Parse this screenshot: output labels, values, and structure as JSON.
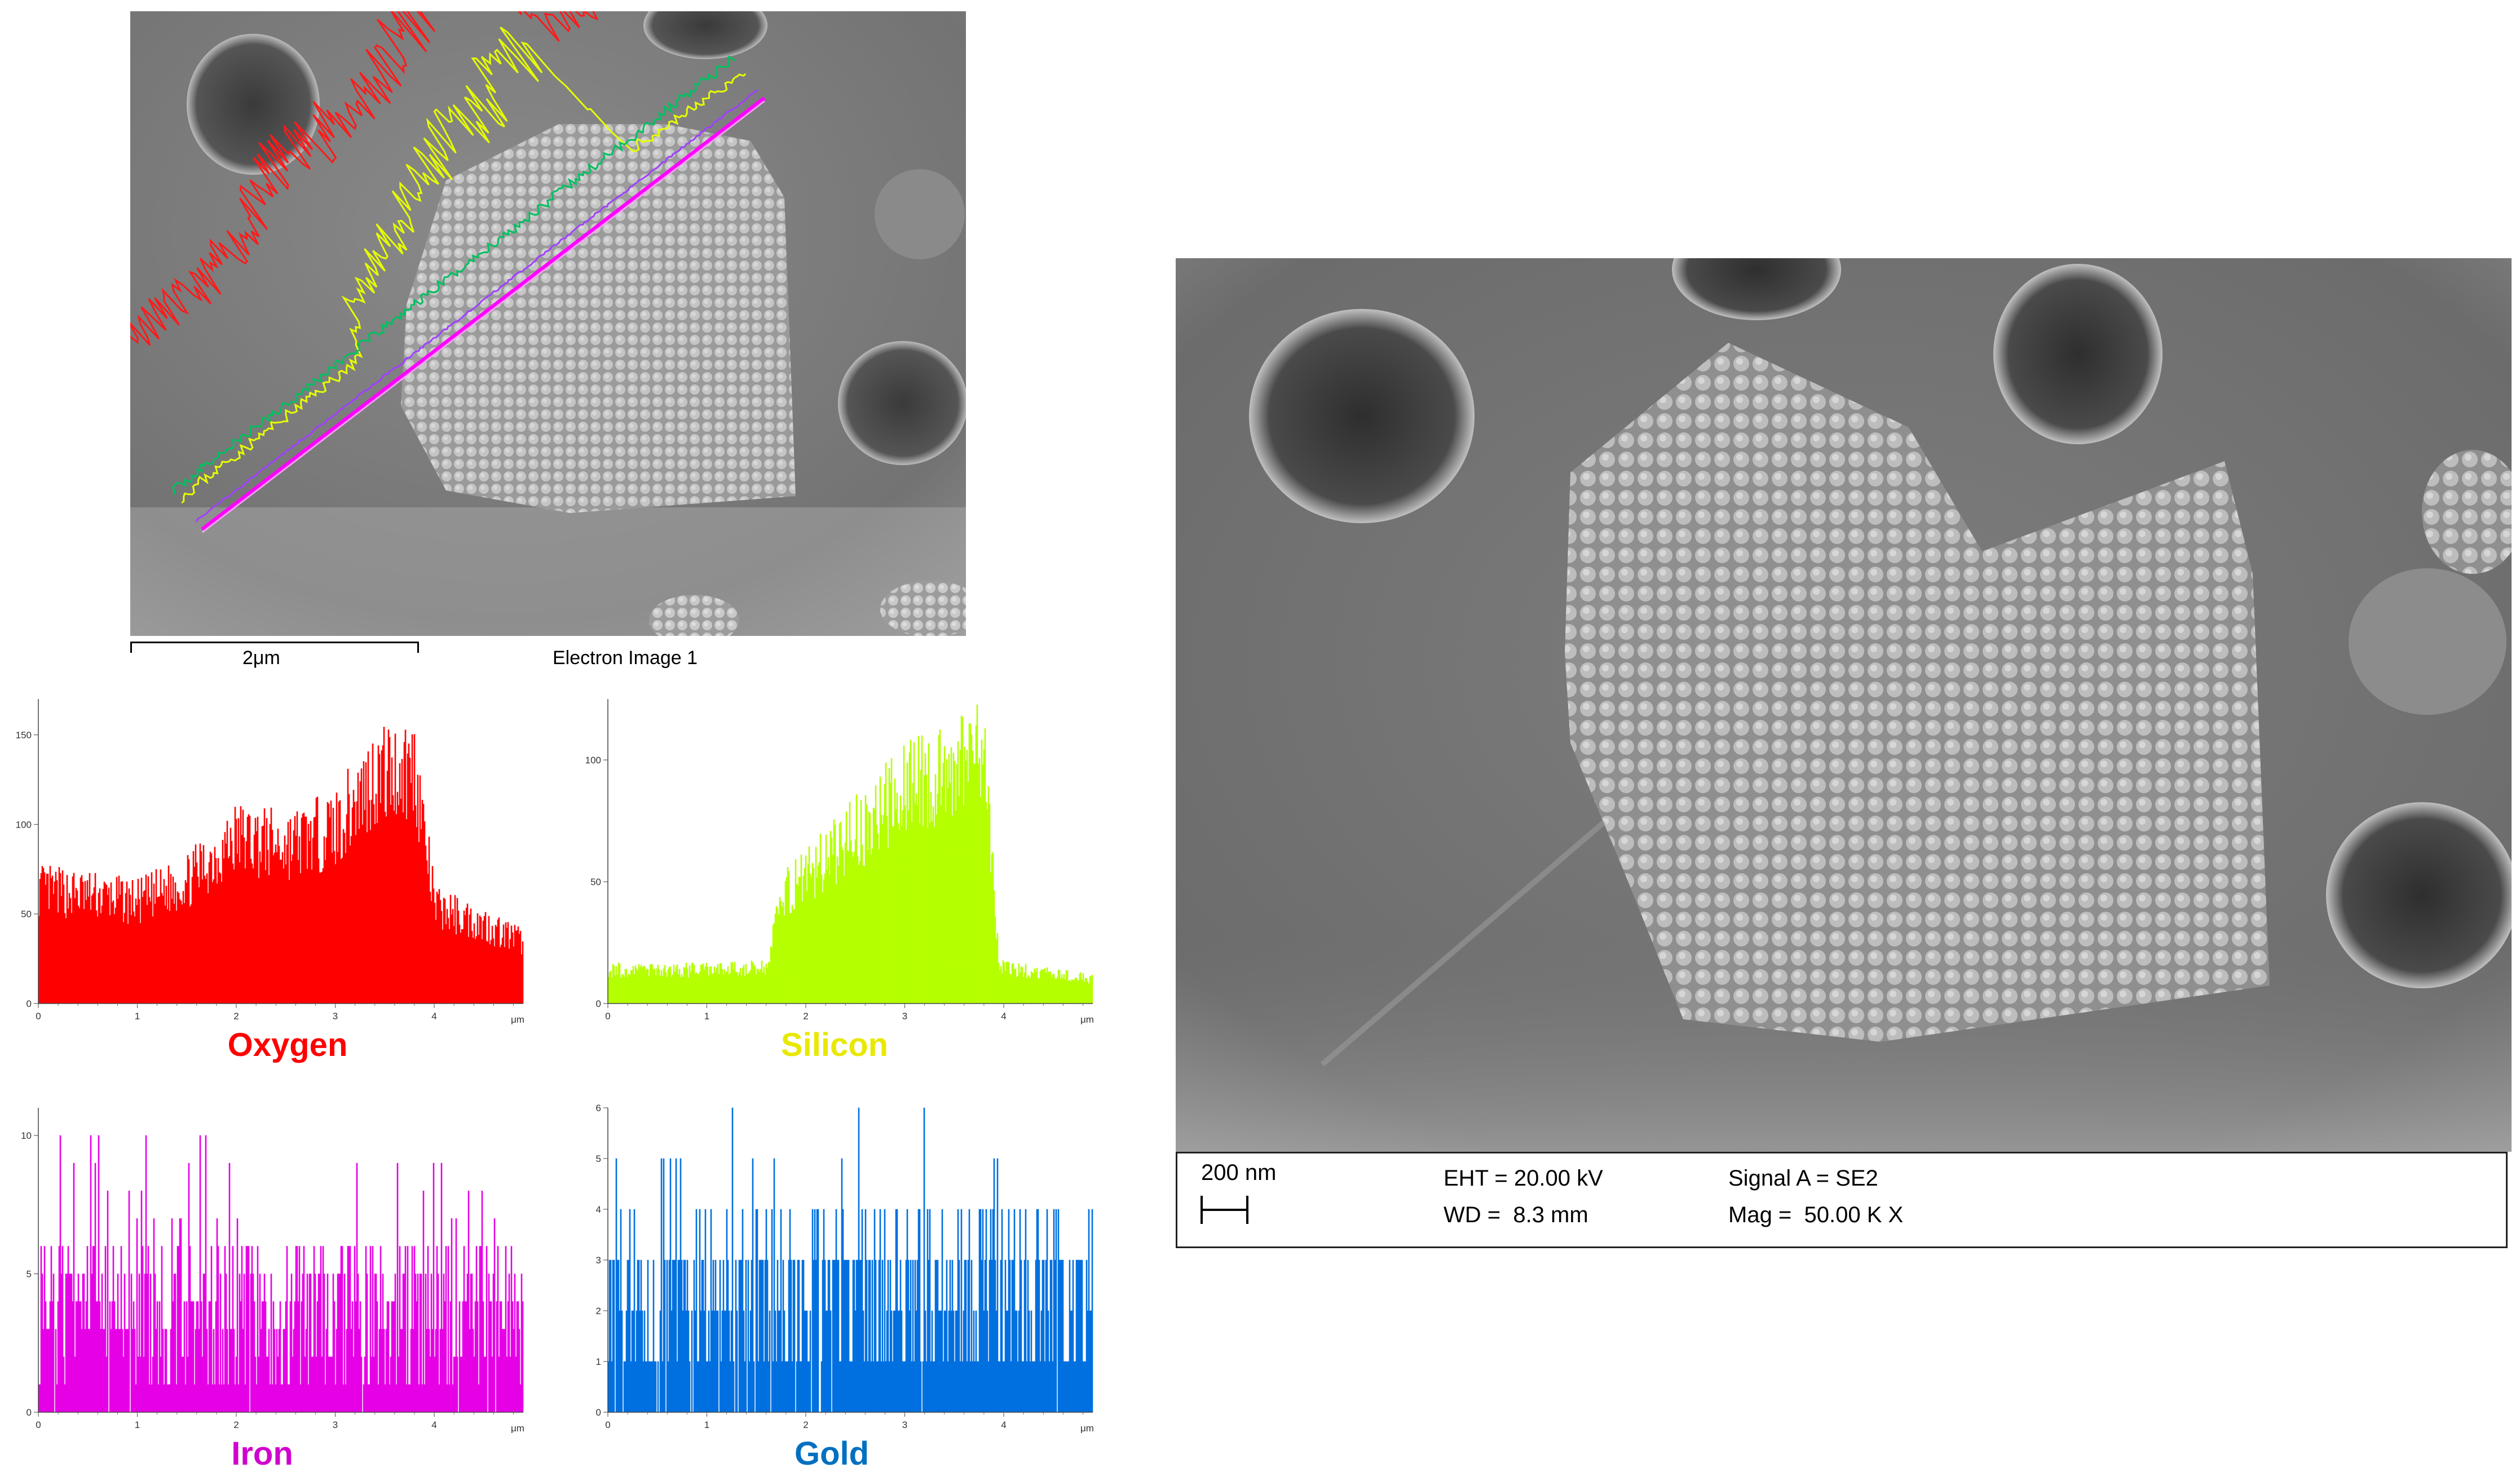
{
  "left_image": {
    "scale_label": "2μm",
    "caption": "Electron Image 1"
  },
  "chart_data": [
    {
      "type": "bar",
      "title": "Oxygen",
      "color": "#ff0000",
      "xlabel": "μm",
      "xlim": [
        0,
        4.9
      ],
      "ylim": [
        0,
        170
      ],
      "xticks": [
        "0",
        "1",
        "2",
        "3",
        "4"
      ],
      "yticks": [
        "0",
        "50",
        "100",
        "150"
      ],
      "profile": [
        [
          0,
          65
        ],
        [
          0.5,
          62
        ],
        [
          1,
          58
        ],
        [
          1.5,
          70
        ],
        [
          2,
          95
        ],
        [
          2.5,
          90
        ],
        [
          3,
          100
        ],
        [
          3.4,
          130
        ],
        [
          3.8,
          135
        ],
        [
          4,
          55
        ],
        [
          4.5,
          45
        ],
        [
          4.9,
          35
        ]
      ]
    },
    {
      "type": "bar",
      "title": "Silicon",
      "color": "#b5ff00",
      "xlabel": "μm",
      "xlim": [
        0,
        4.9
      ],
      "ylim": [
        0,
        125
      ],
      "xticks": [
        "0",
        "1",
        "2",
        "3",
        "4"
      ],
      "yticks": [
        "0",
        "50",
        "100"
      ],
      "profile": [
        [
          0,
          14
        ],
        [
          1,
          14
        ],
        [
          1.6,
          15
        ],
        [
          1.75,
          45
        ],
        [
          2.2,
          60
        ],
        [
          2.6,
          75
        ],
        [
          3,
          90
        ],
        [
          3.5,
          100
        ],
        [
          3.8,
          105
        ],
        [
          3.95,
          15
        ],
        [
          4.5,
          12
        ],
        [
          4.9,
          10
        ]
      ]
    },
    {
      "type": "bar",
      "title": "Iron",
      "color": "#e600e6",
      "xlabel": "μm",
      "xlim": [
        0,
        4.9
      ],
      "ylim": [
        0,
        11
      ],
      "xticks": [
        "0",
        "1",
        "2",
        "3",
        "4"
      ],
      "yticks": [
        "0",
        "5",
        "10"
      ],
      "profile": [
        [
          0,
          3
        ],
        [
          4.9,
          3
        ]
      ]
    },
    {
      "type": "bar",
      "title": "Gold",
      "color": "#0070e0",
      "xlabel": "μm",
      "xlim": [
        0,
        4.9
      ],
      "ylim": [
        0,
        6
      ],
      "xticks": [
        "0",
        "1",
        "2",
        "3",
        "4"
      ],
      "yticks": [
        "0",
        "1",
        "2",
        "3",
        "4",
        "5",
        "6"
      ],
      "profile": [
        [
          0,
          1.8
        ],
        [
          4.9,
          2
        ]
      ]
    }
  ],
  "right_image": {
    "scale_label": "200 nm",
    "eht": "EHT = 20.00 kV",
    "wd": "WD =  8.3 mm",
    "signal": "Signal A = SE2",
    "mag": "Mag =  50.00 K X"
  }
}
